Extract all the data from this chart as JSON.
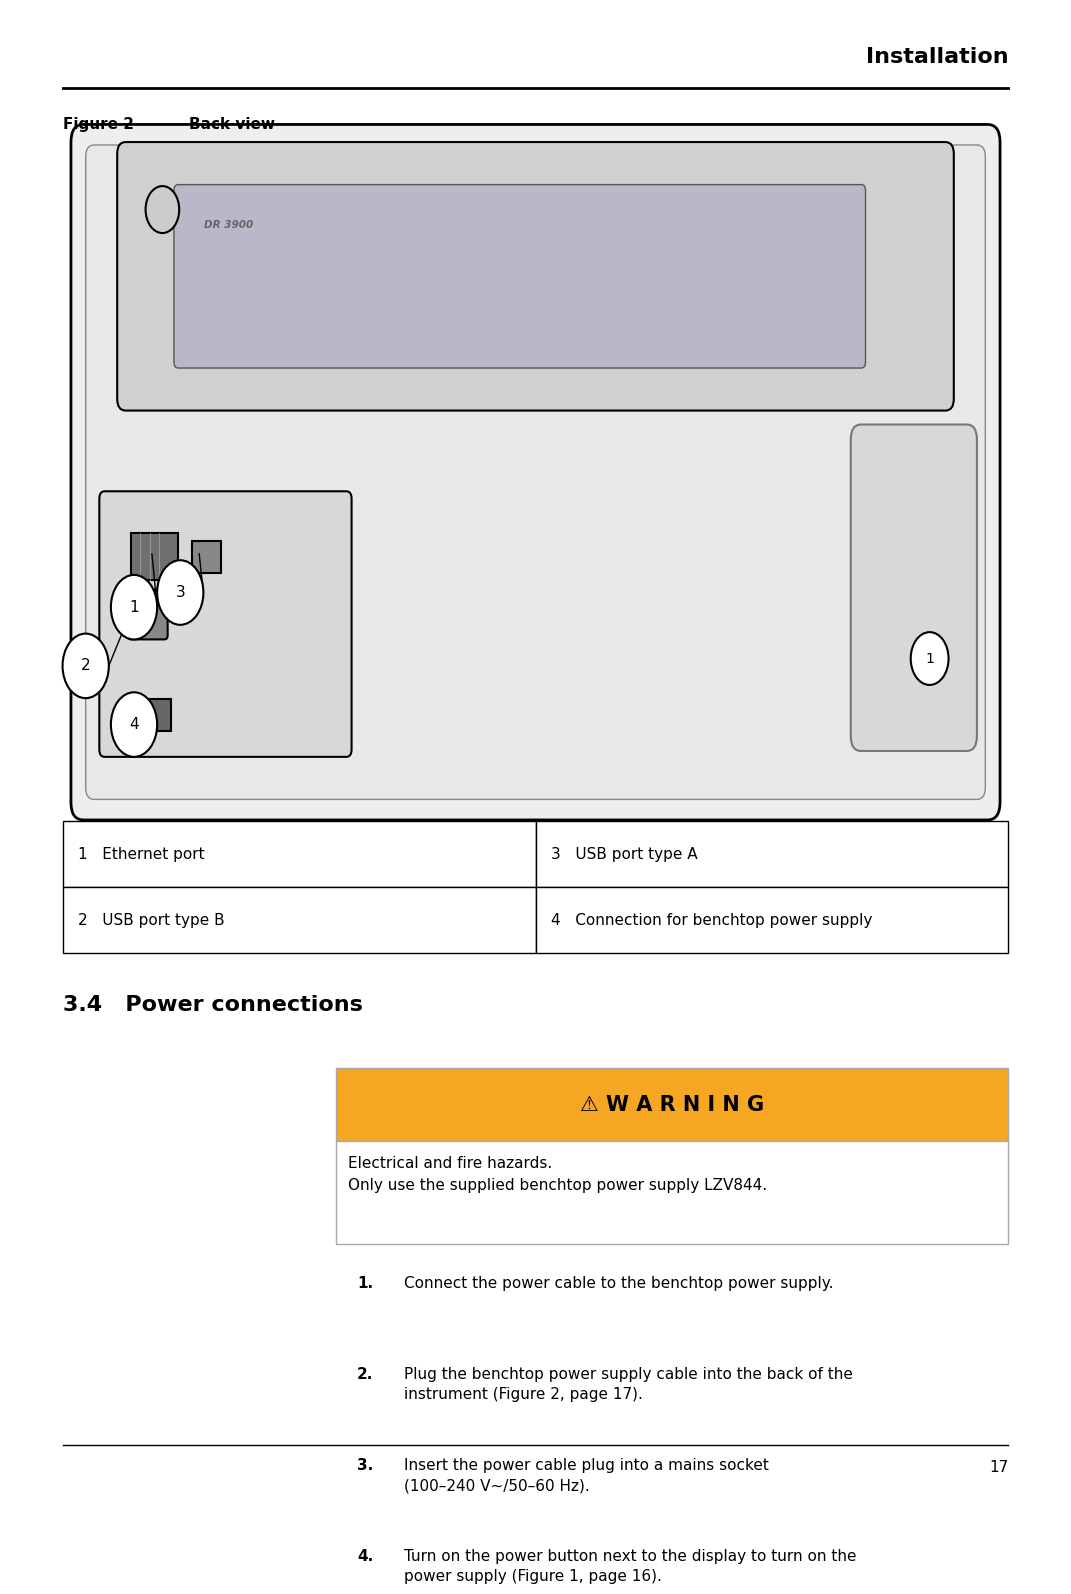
{
  "page_width": 10.51,
  "page_height": 15.61,
  "bg_color": "#ffffff",
  "header_text": "Installation",
  "header_fontsize": 16,
  "figure_label": "Figure 2",
  "figure_caption": "Back view",
  "figure_label_fontsize": 11,
  "section_title": "3.4   Power connections",
  "section_title_fontsize": 16,
  "table_rows": [
    [
      "1   Ethernet port",
      "3   USB port type A"
    ],
    [
      "2   USB port type B",
      "4   Connection for benchtop power supply"
    ]
  ],
  "table_fontsize": 11,
  "warning_header": "⚠ W A R N I N G",
  "warning_bg": "#f5a623",
  "warning_text_line1": "Electrical and fire hazards.",
  "warning_text_line2": "Only use the supplied benchtop power supply LZV844.",
  "warning_fontsize": 11,
  "steps": [
    {
      "num": "1.",
      "text": "Connect the power cable to the benchtop power supply."
    },
    {
      "num": "2.",
      "text": "Plug the benchtop power supply cable into the back of the\ninstrument (Figure 2, page 17)."
    },
    {
      "num": "3.",
      "text": "Insert the power cable plug into a mains socket\n(100–240 V~/50–60 Hz)."
    },
    {
      "num": "4.",
      "text": "Turn on the power button next to the display to turn on the\npower supply (Figure 1, page 16)."
    }
  ],
  "steps_fontsize": 11,
  "page_number": "17",
  "footer_fontsize": 11,
  "orange_color": "#f5a623",
  "link_color": "#0070C0"
}
